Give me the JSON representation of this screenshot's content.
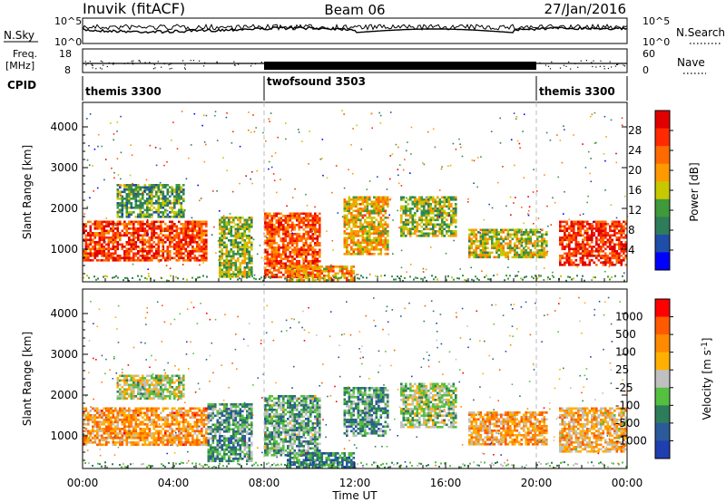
{
  "header": {
    "station": "Inuvik (fitACF)",
    "beam": "Beam 06",
    "date": "27/Jan/2016"
  },
  "top_panels": {
    "nsky_label": "N.Sky",
    "nsky_ticks": [
      "10^5",
      "10^0"
    ],
    "nsearch_label": "N.Search",
    "nsearch_ticks": [
      "10^5",
      "10^0"
    ],
    "freq_label": "Freq.",
    "freq_unit": "[MHz]",
    "freq_ticks": [
      "18",
      "8"
    ],
    "nave_label": "Nave",
    "nave_ticks": [
      "60",
      "0"
    ],
    "cpid_label": "CPID",
    "cpid_segments": [
      {
        "name": "themis 3300",
        "start_h": 0,
        "end_h": 8
      },
      {
        "name": "twofsound 3503",
        "start_h": 8,
        "end_h": 20
      },
      {
        "name": "themis 3300",
        "start_h": 20,
        "end_h": 24
      }
    ]
  },
  "chart_data": [
    {
      "type": "heatmap",
      "panel": "power",
      "ylabel": "Slant Range [km]",
      "yticks": [
        "1000",
        "2000",
        "3000",
        "4000"
      ],
      "ylim": [
        200,
        4600
      ],
      "xlim": [
        0,
        24
      ],
      "colorbar": {
        "label": "Power [dB]",
        "ticks": [
          "4",
          "8",
          "12",
          "16",
          "20",
          "24",
          "28"
        ],
        "colors": [
          "#0000ff",
          "#1f4ea8",
          "#2e7d5a",
          "#3f9a3a",
          "#c8c800",
          "#ff9900",
          "#ff6a00",
          "#ff2a00",
          "#e00000"
        ]
      },
      "regions": [
        {
          "h0": 0.0,
          "h1": 5.5,
          "r0": 700,
          "r1": 1700,
          "level": 0.85
        },
        {
          "h0": 1.5,
          "h1": 4.5,
          "r0": 1800,
          "r1": 2600,
          "level": 0.35
        },
        {
          "h0": 6.0,
          "h1": 7.5,
          "r0": 300,
          "r1": 1800,
          "level": 0.45
        },
        {
          "h0": 8.0,
          "h1": 10.5,
          "r0": 300,
          "r1": 1900,
          "level": 0.8
        },
        {
          "h0": 9.0,
          "h1": 12.0,
          "r0": 250,
          "r1": 600,
          "level": 0.65
        },
        {
          "h0": 11.5,
          "h1": 13.5,
          "r0": 900,
          "r1": 2300,
          "level": 0.6
        },
        {
          "h0": 14.0,
          "h1": 16.5,
          "r0": 1300,
          "r1": 2300,
          "level": 0.45
        },
        {
          "h0": 17.0,
          "h1": 20.5,
          "r0": 800,
          "r1": 1500,
          "level": 0.5
        },
        {
          "h0": 21.0,
          "h1": 24.0,
          "r0": 600,
          "r1": 1700,
          "level": 0.9
        }
      ]
    },
    {
      "type": "heatmap",
      "panel": "velocity",
      "ylabel": "Slant Range [km]",
      "yticks": [
        "1000",
        "2000",
        "3000",
        "4000"
      ],
      "ylim": [
        200,
        4600
      ],
      "xlim": [
        0,
        24
      ],
      "xticks": [
        "00:00",
        "04:00",
        "08:00",
        "12:00",
        "16:00",
        "20:00",
        "00:00"
      ],
      "xlabel": "Time UT",
      "colorbar": {
        "label": "Velocity [m s^-1]",
        "ticks": [
          "1000",
          "500",
          "100",
          "25",
          "-25",
          "-100",
          "-500",
          "-1000"
        ],
        "colors": [
          "#1f3fb0",
          "#2a5a9a",
          "#2e7d5a",
          "#55c040",
          "#c0c0c0",
          "#ffb000",
          "#ff8a00",
          "#ff5a00",
          "#ff0000"
        ]
      },
      "regions": [
        {
          "h0": 0.0,
          "h1": 5.5,
          "r0": 800,
          "r1": 1700,
          "level": 0.72
        },
        {
          "h0": 1.5,
          "h1": 4.5,
          "r0": 1900,
          "r1": 2500,
          "level": 0.5
        },
        {
          "h0": 5.5,
          "h1": 7.5,
          "r0": 400,
          "r1": 1800,
          "level": 0.3
        },
        {
          "h0": 8.0,
          "h1": 10.5,
          "r0": 500,
          "r1": 2000,
          "level": 0.35
        },
        {
          "h0": 9.0,
          "h1": 12.0,
          "r0": 250,
          "r1": 600,
          "level": 0.2
        },
        {
          "h0": 11.5,
          "h1": 13.5,
          "r0": 1000,
          "r1": 2200,
          "level": 0.3
        },
        {
          "h0": 14.0,
          "h1": 16.5,
          "r0": 1200,
          "r1": 2300,
          "level": 0.45
        },
        {
          "h0": 17.0,
          "h1": 20.5,
          "r0": 800,
          "r1": 1600,
          "level": 0.7
        },
        {
          "h0": 21.0,
          "h1": 24.0,
          "r0": 600,
          "r1": 1700,
          "level": 0.65
        }
      ]
    }
  ],
  "colors": {
    "grid_dash": "#bbbbbb",
    "axis": "#000000",
    "trace": "#000000"
  }
}
